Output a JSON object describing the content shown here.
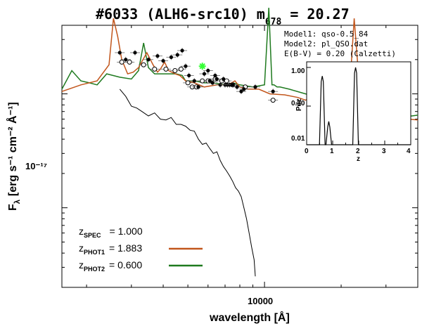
{
  "title": {
    "prefix": "#6033 (ALH6-src10)  m",
    "sub": "678",
    "value": " = 20.27"
  },
  "axes": {
    "xlabel": "wavelength [Å]",
    "ylabel_main": "F",
    "ylabel_sub": "λ",
    "ylabel_units": "[erg s⁻¹ cm⁻² Å⁻¹]",
    "x_tick_label": "10000",
    "y_tick_label": "10⁻¹⁷"
  },
  "models": {
    "line1": "Model1: qso-0.5_84",
    "line2": "Model2: pl_QSO.dat",
    "line3": "E(B-V) = 0.20 (Calzetti)"
  },
  "legend": [
    {
      "sym": "z",
      "sub": "SPEC",
      "val": "= 1.000",
      "color": ""
    },
    {
      "sym": "z",
      "sub": "PHOT1",
      "val": "= 1.883",
      "color": "#c2561c"
    },
    {
      "sym": "z",
      "sub": "PHOT2",
      "val": "= 0.600",
      "color": "#1f7a1f"
    }
  ],
  "inset": {
    "ylabel": "Pdz",
    "xlabel": "z",
    "yticks": [
      "1.00",
      "0.10",
      "0.01"
    ],
    "xticks": [
      "0",
      "1",
      "2",
      "3",
      "4"
    ]
  },
  "chart_data": {
    "type": "line",
    "title": "#6033 (ALH6-src10) m678 = 20.27",
    "xlabel": "wavelength [Å]",
    "ylabel": "Fλ [erg s⁻¹ cm⁻² Å⁻¹]",
    "x_scale": "log",
    "y_scale": "log",
    "xlim": [
      1600,
      40000
    ],
    "ylim": [
      2e-19,
      4e-17
    ],
    "series": [
      {
        "name": "zPHOT1 = 1.883",
        "color": "#c2561c",
        "x": [
          1600,
          1900,
          2200,
          2450,
          2550,
          2650,
          2750,
          2900,
          3050,
          3200,
          3450,
          3650,
          3800,
          3900,
          4050,
          4200,
          4450,
          4650,
          4900,
          5300,
          5800,
          6500,
          7200,
          7650,
          8000,
          8600,
          9500,
          10500,
          12000,
          13500,
          14500,
          15500,
          16500,
          17500,
          18200,
          18600,
          19200,
          20200,
          21000,
          21800,
          22500,
          24000,
          26000,
          29000,
          33000,
          37000,
          40000
        ],
        "y": [
          1.05e-17,
          1.2e-17,
          1.3e-17,
          1.8e-17,
          4.6e-17,
          3.2e-17,
          2e-17,
          1.5e-17,
          1.55e-17,
          1.7e-17,
          2.3e-17,
          1.8e-17,
          1.55e-17,
          1.65e-17,
          1.9e-17,
          1.6e-17,
          1.5e-17,
          1.45e-17,
          1.3e-17,
          1.25e-17,
          1.15e-17,
          1.2e-17,
          1.2e-17,
          1.3e-17,
          1.15e-17,
          1.1e-17,
          1.1e-17,
          1e-17,
          9.8e-18,
          9.3e-18,
          8.8e-18,
          9.5e-18,
          8.6e-18,
          8.2e-18,
          8e-18,
          1.1e-17,
          8e-18,
          7.5e-18,
          7.2e-18,
          1.5e-17,
          4.6e-17,
          7e-18,
          6.6e-18,
          6.4e-18,
          6.2e-18,
          6e-18,
          5.9e-18
        ]
      },
      {
        "name": "zPHOT2 = 0.600",
        "color": "#1f7a1f",
        "x": [
          1600,
          1750,
          1900,
          2050,
          2200,
          2400,
          2700,
          3000,
          3200,
          3350,
          3500,
          3700,
          4000,
          4200,
          4500,
          4750,
          4900,
          5300,
          5800,
          6300,
          7000,
          7500,
          8000,
          9000,
          10000,
          10400,
          10700,
          10900,
          11200,
          11500,
          12500,
          14500,
          16500,
          19000,
          22000,
          26000,
          28500,
          32000,
          36000,
          40000
        ],
        "y": [
          1.1e-17,
          1.6e-17,
          1.3e-17,
          1.25e-17,
          1.2e-17,
          1.5e-17,
          1.4e-17,
          1.35e-17,
          1.6e-17,
          2.8e-17,
          1.7e-17,
          1.5e-17,
          1.5e-17,
          1.5e-17,
          1.5e-17,
          1.45e-17,
          1.3e-17,
          1.3e-17,
          1.25e-17,
          1.25e-17,
          1.2e-17,
          1.25e-17,
          1.2e-17,
          1.15e-17,
          1.2e-17,
          5.7e-17,
          1.2e-17,
          1.2e-17,
          1.15e-17,
          1.15e-17,
          1.1e-17,
          1e-17,
          9e-18,
          8e-18,
          7e-18,
          6e-18,
          5.7e-18,
          6e-18,
          6.3e-18,
          6.5e-18
        ]
      },
      {
        "name": "zSPEC = 1.000",
        "color": "#000000",
        "x": [
          2700,
          2850,
          3000,
          3150,
          3300,
          3500,
          3700,
          3900,
          4100,
          4300,
          4500,
          4700,
          4900,
          5100,
          5300,
          5500,
          5700,
          5900,
          6100,
          6300,
          6500,
          6700,
          6900,
          7100,
          7300,
          7500,
          7700,
          7900,
          8100,
          8300,
          8500,
          8700,
          8900,
          9100,
          9200
        ],
        "y": [
          1.1e-17,
          9.5e-18,
          7.8e-18,
          7.5e-18,
          7e-18,
          6.4e-18,
          6.8e-18,
          6e-18,
          5.9e-18,
          6.2e-18,
          5.4e-18,
          5.4e-18,
          5.2e-18,
          4.8e-18,
          4.7e-18,
          4e-18,
          3.6e-18,
          3.7e-18,
          3.3e-18,
          3e-18,
          3.1e-18,
          2.6e-18,
          2.3e-18,
          2.1e-18,
          1.9e-18,
          1.7e-18,
          1.5e-18,
          1.4e-18,
          1.25e-18,
          1e-18,
          8e-19,
          6e-19,
          4.5e-19,
          3.5e-19,
          2.5e-19
        ]
      }
    ],
    "photometry_open": {
      "x": [
        2750,
        2950,
        3350,
        3700,
        4100,
        4450,
        4700,
        5000,
        5200,
        5400,
        5700,
        6000,
        6400,
        6800,
        7100,
        7500,
        8400,
        10800,
        26500,
        35500
      ],
      "y": [
        1.9e-17,
        1.9e-17,
        1.8e-17,
        1.65e-17,
        1.65e-17,
        1.6e-17,
        1.65e-17,
        1.25e-17,
        1.15e-17,
        1.15e-17,
        1.3e-17,
        1.3e-17,
        1.35e-17,
        1.3e-17,
        1.3e-17,
        1.2e-17,
        1.15e-17,
        8.8e-18,
        5.1e-18,
        4.4e-18
      ]
    },
    "photometry_filled": {
      "x": [
        2700,
        2850,
        3100,
        3500,
        3800,
        4000,
        4300,
        4550,
        4750,
        4900,
        5050,
        5300,
        5500,
        5800,
        6000,
        6100,
        6250,
        6400,
        6500,
        6700,
        6900,
        7000,
        7150,
        7300,
        7500,
        7800,
        8100,
        8300,
        9200,
        10800,
        26500,
        35500
      ],
      "y": [
        2.3e-17,
        2e-17,
        2.3e-17,
        2e-17,
        2.15e-17,
        1.95e-17,
        2.1e-17,
        2.2e-17,
        2.4e-17,
        1.75e-17,
        1.45e-17,
        1.3e-17,
        1.15e-17,
        1.5e-17,
        1.6e-17,
        1.3e-17,
        1.25e-17,
        1.45e-17,
        1.35e-17,
        1.2e-17,
        1.35e-17,
        1.2e-17,
        1.2e-17,
        1.2e-17,
        1.2e-17,
        1.15e-17,
        1.05e-17,
        1.1e-17,
        1.15e-17,
        1.05e-17,
        4.9e-18,
        4.7e-18
      ]
    },
    "star_point": {
      "x": 5700,
      "y": 1.75e-17,
      "color": "#33ff33"
    },
    "pdz": {
      "xlim": [
        0,
        4
      ],
      "ylim": [
        0.01,
        1.0
      ],
      "y_scale": "log",
      "peaks": [
        {
          "z": 0.6,
          "p": 0.6
        },
        {
          "z": 0.85,
          "p": 0.04
        },
        {
          "z": 1.88,
          "p": 1.0
        }
      ]
    }
  }
}
